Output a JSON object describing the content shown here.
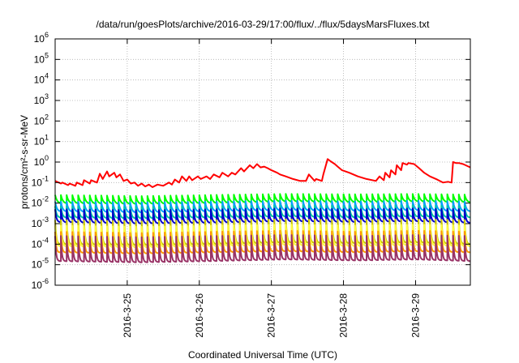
{
  "chart_data": {
    "type": "line",
    "title": "/data/run/goesPlots/archive/2016-03-29/17:00/flux/../flux/5daysMarsFluxes.txt",
    "xlabel": "Coordinated Universal Time (UTC)",
    "ylabel": "protons/cm²-s-sr-MeV",
    "yscale": "log",
    "ylim": [
      1e-06,
      1000000.0
    ],
    "xlim": [
      0,
      5.76
    ],
    "x_unit": "days after 2016-03-24 00:00 UTC",
    "x_ticks": [
      {
        "x": 1,
        "label": "2016-3-25"
      },
      {
        "x": 2,
        "label": "2016-3-26"
      },
      {
        "x": 3,
        "label": "2016-3-27"
      },
      {
        "x": 4,
        "label": "2016-3-28"
      },
      {
        "x": 5,
        "label": "2016-3-29"
      }
    ],
    "y_ticks": [
      {
        "exp": -6,
        "base": "10",
        "sup": "-6"
      },
      {
        "exp": -5,
        "base": "10",
        "sup": "-5"
      },
      {
        "exp": -4,
        "base": "10",
        "sup": "-4"
      },
      {
        "exp": -3,
        "base": "10",
        "sup": "-3"
      },
      {
        "exp": -2,
        "base": "10",
        "sup": "-2"
      },
      {
        "exp": -1,
        "base": "10",
        "sup": "-1"
      },
      {
        "exp": 0,
        "base": "10",
        "sup": "0"
      },
      {
        "exp": 1,
        "base": "10",
        "sup": "1"
      },
      {
        "exp": 2,
        "base": "10",
        "sup": "2"
      },
      {
        "exp": 3,
        "base": "10",
        "sup": "3"
      },
      {
        "exp": 4,
        "base": "10",
        "sup": "4"
      },
      {
        "exp": 5,
        "base": "10",
        "sup": "5"
      },
      {
        "exp": 6,
        "base": "10",
        "sup": "6"
      }
    ],
    "grid": true,
    "series": [
      {
        "color": "#ff0000",
        "x": [
          0.0,
          0.08,
          0.1,
          0.18,
          0.2,
          0.28,
          0.3,
          0.38,
          0.4,
          0.48,
          0.5,
          0.58,
          0.62,
          0.66,
          0.72,
          0.75,
          0.82,
          0.85,
          0.9,
          0.95,
          1.0,
          1.05,
          1.1,
          1.15,
          1.2,
          1.25,
          1.3,
          1.35,
          1.42,
          1.5,
          1.58,
          1.62,
          1.66,
          1.72,
          1.76,
          1.82,
          1.86,
          1.9,
          1.98,
          2.02,
          2.1,
          2.15,
          2.2,
          2.28,
          2.32,
          2.4,
          2.45,
          2.5,
          2.58,
          2.62,
          2.7,
          2.75,
          2.8,
          2.85,
          2.9,
          2.95,
          3.0,
          3.08,
          3.12,
          3.2,
          3.3,
          3.4,
          3.48,
          3.52,
          3.6,
          3.62,
          3.7,
          3.72,
          3.78,
          3.82,
          3.88,
          3.92,
          3.98,
          4.08,
          4.2,
          4.32,
          4.45,
          4.5,
          4.56,
          4.58,
          4.64,
          4.66,
          4.72,
          4.74,
          4.8,
          4.82,
          4.88,
          4.9,
          4.98,
          5.05,
          5.12,
          5.2,
          5.3,
          5.38,
          5.45,
          5.5,
          5.52,
          5.56,
          5.6,
          5.66,
          5.76
        ],
        "y": [
          0.12,
          0.09,
          0.1,
          0.075,
          0.09,
          0.07,
          0.1,
          0.075,
          0.13,
          0.09,
          0.13,
          0.1,
          0.27,
          0.15,
          0.35,
          0.2,
          0.3,
          0.18,
          0.25,
          0.12,
          0.14,
          0.09,
          0.1,
          0.07,
          0.09,
          0.065,
          0.08,
          0.06,
          0.08,
          0.07,
          0.1,
          0.08,
          0.14,
          0.1,
          0.2,
          0.12,
          0.2,
          0.13,
          0.2,
          0.15,
          0.2,
          0.15,
          0.25,
          0.18,
          0.3,
          0.2,
          0.3,
          0.25,
          0.5,
          0.35,
          0.7,
          0.5,
          0.8,
          0.55,
          0.6,
          0.5,
          0.4,
          0.3,
          0.25,
          0.2,
          0.15,
          0.12,
          0.12,
          0.25,
          0.12,
          0.15,
          0.12,
          0.25,
          1.4,
          1.1,
          0.8,
          0.6,
          0.4,
          0.3,
          0.2,
          0.15,
          0.12,
          0.2,
          0.13,
          0.3,
          0.18,
          0.4,
          0.25,
          0.7,
          0.4,
          0.9,
          0.75,
          0.9,
          0.8,
          0.5,
          0.3,
          0.2,
          0.14,
          0.1,
          0.11,
          0.1,
          1.0,
          0.9,
          0.9,
          0.8,
          0.55
        ]
      },
      {
        "color": "#00ff00",
        "period": 0.08,
        "decay": 2,
        "min_curve": [
          [
            0,
            0.01
          ],
          [
            1.2,
            0.009
          ],
          [
            2.2,
            0.01
          ],
          [
            3.2,
            0.012
          ],
          [
            4.2,
            0.011
          ],
          [
            5.0,
            0.012
          ],
          [
            5.76,
            0.011
          ]
        ],
        "max_curve": [
          [
            0,
            0.025
          ],
          [
            1.2,
            0.022
          ],
          [
            2.2,
            0.025
          ],
          [
            3.2,
            0.028
          ],
          [
            4.2,
            0.027
          ],
          [
            5.0,
            0.028
          ],
          [
            5.76,
            0.026
          ]
        ]
      },
      {
        "color": "#00a0ff",
        "period": 0.08,
        "decay": 2.5,
        "min_curve": [
          [
            0,
            0.004
          ],
          [
            1.2,
            0.0035
          ],
          [
            2.2,
            0.004
          ],
          [
            3.2,
            0.0045
          ],
          [
            4.2,
            0.0042
          ],
          [
            5.0,
            0.0045
          ],
          [
            5.76,
            0.004
          ]
        ],
        "max_curve": [
          [
            0,
            0.012
          ],
          [
            1.2,
            0.011
          ],
          [
            2.2,
            0.012
          ],
          [
            3.2,
            0.013
          ],
          [
            4.2,
            0.012
          ],
          [
            5.0,
            0.013
          ],
          [
            5.76,
            0.012
          ]
        ]
      },
      {
        "color": "#00c8a0",
        "period": 0.08,
        "decay": 3,
        "min_curve": [
          [
            0,
            0.002
          ],
          [
            1.2,
            0.0018
          ],
          [
            2.2,
            0.002
          ],
          [
            3.2,
            0.0022
          ],
          [
            4.2,
            0.002
          ],
          [
            5.0,
            0.0022
          ],
          [
            5.76,
            0.002
          ]
        ],
        "max_curve": [
          [
            0,
            0.007
          ],
          [
            1.2,
            0.0065
          ],
          [
            2.2,
            0.007
          ],
          [
            3.2,
            0.008
          ],
          [
            4.2,
            0.0075
          ],
          [
            5.0,
            0.008
          ],
          [
            5.76,
            0.007
          ]
        ]
      },
      {
        "color": "#0000cc",
        "period": 0.08,
        "decay": 3.5,
        "min_curve": [
          [
            0,
            0.0012
          ],
          [
            1.2,
            0.001
          ],
          [
            2.2,
            0.0011
          ],
          [
            3.2,
            0.0013
          ],
          [
            4.2,
            0.0012
          ],
          [
            5.0,
            0.0013
          ],
          [
            5.76,
            0.0011
          ]
        ],
        "max_curve": [
          [
            0,
            0.005
          ],
          [
            1.2,
            0.0045
          ],
          [
            2.2,
            0.005
          ],
          [
            3.2,
            0.0055
          ],
          [
            4.2,
            0.005
          ],
          [
            5.0,
            0.0055
          ],
          [
            5.76,
            0.005
          ]
        ]
      },
      {
        "color": "#c8c800",
        "period": 0.08,
        "decay": 4,
        "min_curve": [
          [
            0,
            0.0001
          ],
          [
            1.2,
            9e-05
          ],
          [
            2.2,
            0.0001
          ],
          [
            3.2,
            0.00012
          ],
          [
            4.2,
            0.00011
          ],
          [
            5.0,
            0.00012
          ],
          [
            5.76,
            0.0001
          ]
        ],
        "max_curve": [
          [
            0,
            0.0015
          ],
          [
            1.2,
            0.0013
          ],
          [
            2.2,
            0.0015
          ],
          [
            3.2,
            0.0016
          ],
          [
            4.2,
            0.0015
          ],
          [
            5.0,
            0.0016
          ],
          [
            5.76,
            0.0015
          ]
        ]
      },
      {
        "color": "#ffff40",
        "period": 0.08,
        "decay": 4,
        "min_curve": [
          [
            0,
            8e-05
          ],
          [
            1.2,
            7e-05
          ],
          [
            2.2,
            8e-05
          ],
          [
            3.2,
            9e-05
          ],
          [
            4.2,
            8e-05
          ],
          [
            5.0,
            9e-05
          ],
          [
            5.76,
            8e-05
          ]
        ],
        "max_curve": [
          [
            0,
            0.0008
          ],
          [
            1.2,
            0.0007
          ],
          [
            2.2,
            0.0008
          ],
          [
            3.2,
            0.0009
          ],
          [
            4.2,
            0.0008
          ],
          [
            5.0,
            0.0009
          ],
          [
            5.76,
            0.0008
          ]
        ]
      },
      {
        "color": "#ff9900",
        "period": 0.08,
        "decay": 5,
        "min_curve": [
          [
            0,
            4e-05
          ],
          [
            1.2,
            3.5e-05
          ],
          [
            2.2,
            4e-05
          ],
          [
            3.2,
            4.5e-05
          ],
          [
            4.2,
            4e-05
          ],
          [
            5.0,
            4.5e-05
          ],
          [
            5.76,
            4e-05
          ]
        ],
        "max_curve": [
          [
            0,
            0.0004
          ],
          [
            1.2,
            0.00035
          ],
          [
            2.2,
            0.0004
          ],
          [
            3.2,
            0.00045
          ],
          [
            4.2,
            0.0004
          ],
          [
            5.0,
            0.00045
          ],
          [
            5.76,
            0.0004
          ]
        ]
      },
      {
        "color": "#993366",
        "period": 0.08,
        "decay": 5,
        "min_curve": [
          [
            0,
            1.5e-05
          ],
          [
            1.2,
            1.3e-05
          ],
          [
            2.2,
            1.5e-05
          ],
          [
            3.2,
            1.8e-05
          ],
          [
            4.2,
            1.6e-05
          ],
          [
            5.0,
            1.8e-05
          ],
          [
            5.76,
            1.5e-05
          ]
        ],
        "max_curve": [
          [
            0,
            0.00025
          ],
          [
            1.2,
            0.00022
          ],
          [
            2.2,
            0.00025
          ],
          [
            3.2,
            0.00028
          ],
          [
            4.2,
            0.00025
          ],
          [
            5.0,
            0.00028
          ],
          [
            5.76,
            0.00025
          ]
        ]
      }
    ]
  }
}
